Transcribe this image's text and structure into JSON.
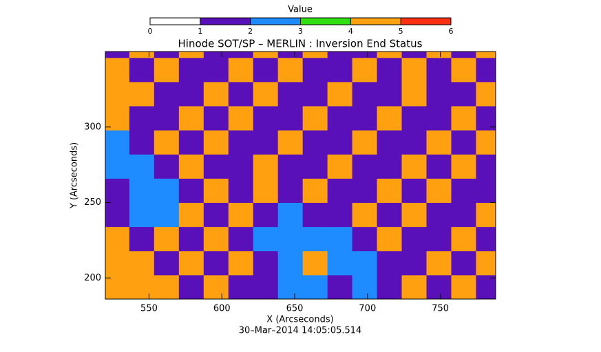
{
  "chart_data": {
    "type": "heatmap",
    "title": "Hinode SOT/SP – MERLIN : Inversion End Status",
    "xlabel": "X (Arcseconds)",
    "ylabel": "Y (Arcseconds)",
    "footer": "30–Mar–2014 14:05:05.514",
    "colorbar": {
      "label": "Value",
      "lim": [
        0,
        6
      ],
      "ticks": [
        0,
        1,
        2,
        3,
        4,
        5,
        6
      ],
      "colors": [
        "#ffffff",
        "#5a10b8",
        "#1e8cff",
        "#30e010",
        "#ffa010",
        "#ff3010"
      ]
    },
    "xlim": [
      520,
      788
    ],
    "ylim": [
      186,
      350
    ],
    "xticks": [
      550,
      600,
      650,
      700,
      750
    ],
    "yticks": [
      200,
      250,
      300
    ],
    "x": [
      528,
      545,
      562,
      579,
      596,
      613,
      630,
      647,
      664,
      681,
      698,
      715,
      732,
      749,
      766,
      783
    ],
    "y": [
      194,
      210,
      226,
      242,
      258,
      274,
      290,
      306,
      322,
      338,
      354
    ],
    "z": [
      [
        4,
        4,
        4,
        1,
        4,
        1,
        1,
        2,
        2,
        1,
        2,
        1,
        4,
        1,
        4,
        1
      ],
      [
        4,
        4,
        1,
        4,
        1,
        4,
        1,
        2,
        4,
        2,
        2,
        1,
        1,
        4,
        1,
        4
      ],
      [
        4,
        1,
        4,
        1,
        4,
        1,
        2,
        2,
        2,
        2,
        1,
        4,
        1,
        1,
        4,
        1
      ],
      [
        1,
        2,
        2,
        4,
        1,
        4,
        1,
        2,
        1,
        1,
        4,
        1,
        4,
        1,
        1,
        4
      ],
      [
        1,
        2,
        2,
        1,
        4,
        1,
        4,
        1,
        4,
        1,
        1,
        4,
        1,
        4,
        1,
        1
      ],
      [
        2,
        2,
        1,
        4,
        1,
        1,
        4,
        1,
        1,
        4,
        1,
        1,
        4,
        1,
        4,
        1
      ],
      [
        2,
        1,
        4,
        1,
        4,
        1,
        1,
        4,
        1,
        1,
        4,
        1,
        1,
        4,
        1,
        4
      ],
      [
        4,
        1,
        1,
        4,
        1,
        4,
        1,
        1,
        4,
        1,
        1,
        4,
        1,
        1,
        4,
        1
      ],
      [
        4,
        4,
        1,
        1,
        4,
        1,
        4,
        1,
        1,
        4,
        1,
        1,
        4,
        1,
        1,
        4
      ],
      [
        4,
        1,
        4,
        1,
        1,
        4,
        1,
        4,
        1,
        1,
        4,
        1,
        4,
        1,
        4,
        1
      ],
      [
        1,
        4,
        1,
        4,
        1,
        1,
        4,
        1,
        4,
        1,
        1,
        4,
        1,
        4,
        1,
        4
      ]
    ]
  }
}
